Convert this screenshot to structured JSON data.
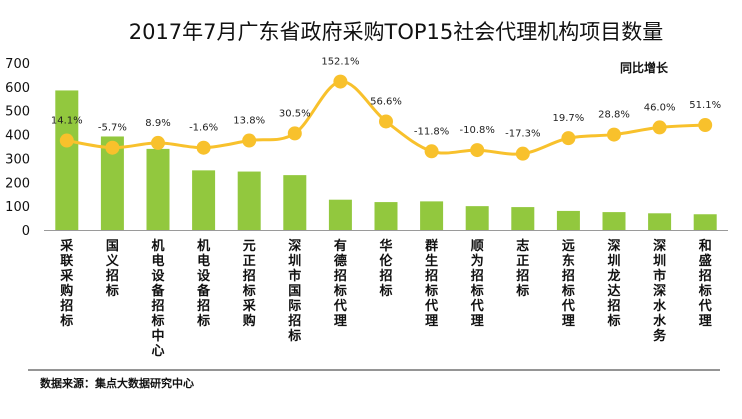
{
  "chart_data": {
    "type": "bar",
    "title": "2017年7月广东省政府采购TOP15社会代理机构项目数量",
    "categories": [
      "采联采购招标",
      "国义招标",
      "机电设备招标中心",
      "机电设备招标",
      "元正招标采购",
      "深圳市国际招标",
      "有德招标代理",
      "华伦招标",
      "群生招标代理",
      "顺为招标代理",
      "志正招标",
      "远东招标代理",
      "深圳龙达招标",
      "深圳市深水水务",
      "和盛招标代理"
    ],
    "series": [
      {
        "name": "项目数量",
        "type": "bar",
        "color": "#92c83e",
        "values": [
          585,
          392,
          340,
          250,
          245,
          230,
          127,
          117,
          120,
          100,
          96,
          80,
          75,
          70,
          66
        ]
      },
      {
        "name": "同比增长",
        "type": "line",
        "color": "#f8c12c",
        "values": [
          375,
          345,
          365,
          345,
          375,
          405,
          622,
          455,
          330,
          335,
          320,
          385,
          400,
          430,
          440
        ],
        "labels": [
          "14.1%",
          "-5.7%",
          "8.9%",
          "-1.6%",
          "13.8%",
          "30.5%",
          "152.1%",
          "56.6%",
          "-11.8%",
          "-10.8%",
          "-17.3%",
          "19.7%",
          "28.8%",
          "46.0%",
          "51.1%"
        ]
      }
    ],
    "yticks": [
      0,
      100,
      200,
      300,
      400,
      500,
      600,
      700
    ],
    "ylim": [
      0,
      700
    ],
    "legend": "同比增长",
    "source": "数据来源：集点大数据研究中心"
  }
}
